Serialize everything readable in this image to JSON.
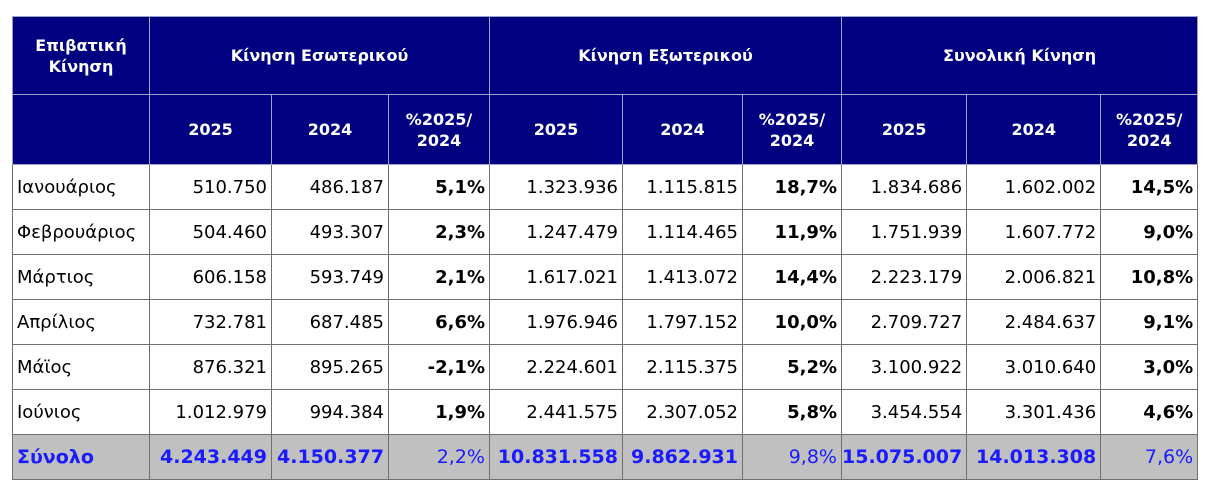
{
  "header": {
    "corner": "Επιβατική Κίνηση",
    "groups": [
      "Κίνηση Εσωτερικού",
      "Κίνηση Εξωτερικού",
      "Συνολική Κίνηση"
    ],
    "subcols": [
      "2025",
      "2024",
      "%2025/ 2024"
    ]
  },
  "rows": [
    {
      "month": "Ιανουάριος",
      "values": [
        "510.750",
        "486.187",
        "5,1%",
        "1.323.936",
        "1.115.815",
        "18,7%",
        "1.834.686",
        "1.602.002",
        "14,5%"
      ]
    },
    {
      "month": "Φεβρουάριος",
      "values": [
        "504.460",
        "493.307",
        "2,3%",
        "1.247.479",
        "1.114.465",
        "11,9%",
        "1.751.939",
        "1.607.772",
        "9,0%"
      ]
    },
    {
      "month": "Μάρτιος",
      "values": [
        "606.158",
        "593.749",
        "2,1%",
        "1.617.021",
        "1.413.072",
        "14,4%",
        "2.223.179",
        "2.006.821",
        "10,8%"
      ]
    },
    {
      "month": "Απρίλιος",
      "values": [
        "732.781",
        "687.485",
        "6,6%",
        "1.976.946",
        "1.797.152",
        "10,0%",
        "2.709.727",
        "2.484.637",
        "9,1%"
      ]
    },
    {
      "month": "Μάϊος",
      "values": [
        "876.321",
        "895.265",
        "-2,1%",
        "2.224.601",
        "2.115.375",
        "5,2%",
        "3.100.922",
        "3.010.640",
        "3,0%"
      ]
    },
    {
      "month": "Ιούνιος",
      "values": [
        "1.012.979",
        "994.384",
        "1,9%",
        "2.441.575",
        "2.307.052",
        "5,8%",
        "3.454.554",
        "3.301.436",
        "4,6%"
      ]
    }
  ],
  "total": {
    "label": "Σύνολο",
    "values": [
      "4.243.449",
      "4.150.377",
      "2,2%",
      "10.831.558",
      "9.862.931",
      "9,8%",
      "15.075.007",
      "14.013.308",
      "7,6%"
    ]
  }
}
